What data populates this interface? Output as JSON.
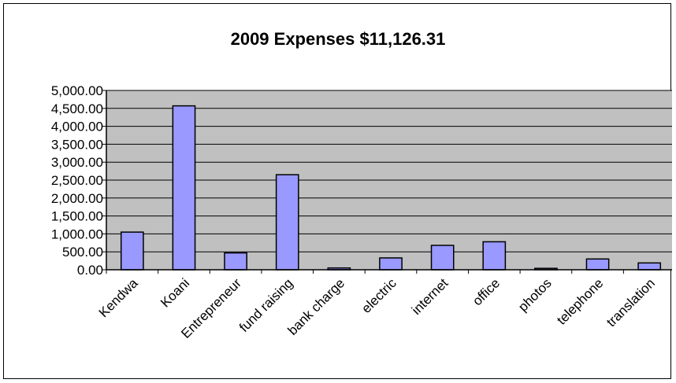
{
  "chart_data": {
    "type": "bar",
    "title": "2009 Expenses $11,126.31",
    "xlabel": "",
    "ylabel": "",
    "ylim": [
      0,
      5000
    ],
    "yticks": [
      "0.00",
      "500.00",
      "1,000.00",
      "1,500.00",
      "2,000.00",
      "2,500.00",
      "3,000.00",
      "3,500.00",
      "4,000.00",
      "4,500.00",
      "5,000.00"
    ],
    "categories": [
      "Kendwa",
      "Koani",
      "Entrepreneur",
      "fund raising",
      "bank charge",
      "electric",
      "internet",
      "office",
      "photos",
      "telephone",
      "translation"
    ],
    "values": [
      1050,
      4570,
      470,
      2650,
      50,
      330,
      680,
      780,
      40,
      300,
      190
    ],
    "grid": true,
    "legend": "none",
    "colors": {
      "bar": "#9999ff",
      "plot_area": "#c0c0c0",
      "gridline": "#000000"
    }
  }
}
